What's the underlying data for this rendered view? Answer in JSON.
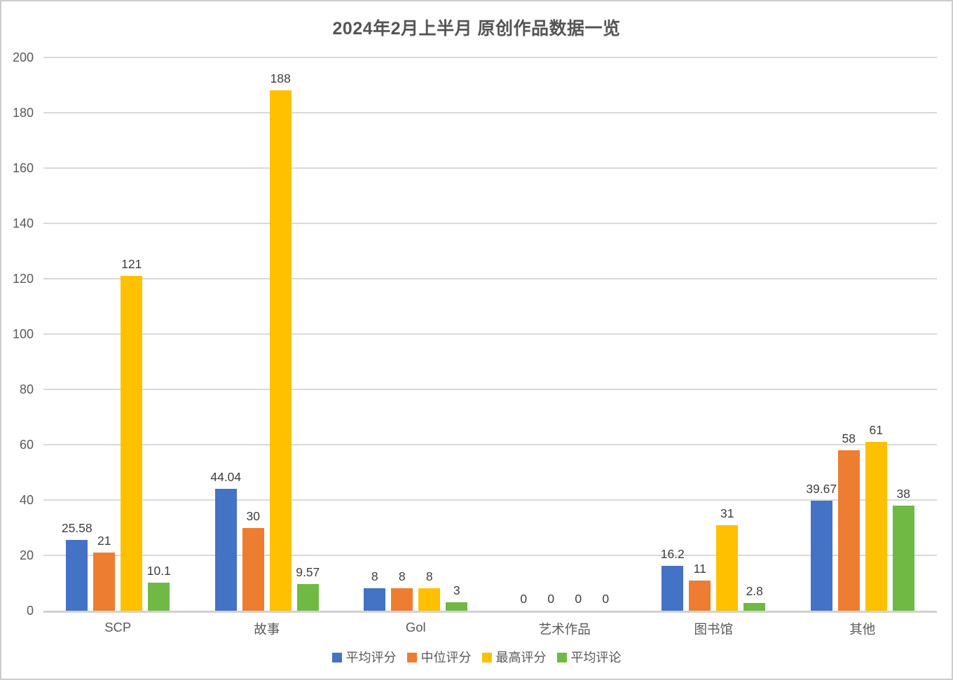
{
  "chart_data": {
    "type": "bar",
    "title": "2024年2月上半月 原创作品数据一览",
    "categories": [
      "SCP",
      "故事",
      "Gol",
      "艺术作品",
      "图书馆",
      "其他"
    ],
    "series": [
      {
        "name": "平均评分",
        "color": "#4472C4",
        "values": [
          25.58,
          44.04,
          8,
          0,
          16.2,
          39.67
        ]
      },
      {
        "name": "中位评分",
        "color": "#ED7D31",
        "values": [
          21,
          30,
          8,
          0,
          11,
          58
        ]
      },
      {
        "name": "最高评分",
        "color": "#FFC000",
        "values": [
          121,
          188,
          8,
          0,
          31,
          61
        ]
      },
      {
        "name": "平均评论",
        "color": "#70B944",
        "values": [
          10.1,
          9.57,
          3,
          0,
          2.8,
          38
        ]
      }
    ],
    "ylim": [
      0,
      200
    ],
    "yticks": [
      0,
      20,
      40,
      60,
      80,
      100,
      120,
      140,
      160,
      180,
      200
    ],
    "grid": true,
    "legend_position": "bottom",
    "xlabel": "",
    "ylabel": ""
  }
}
